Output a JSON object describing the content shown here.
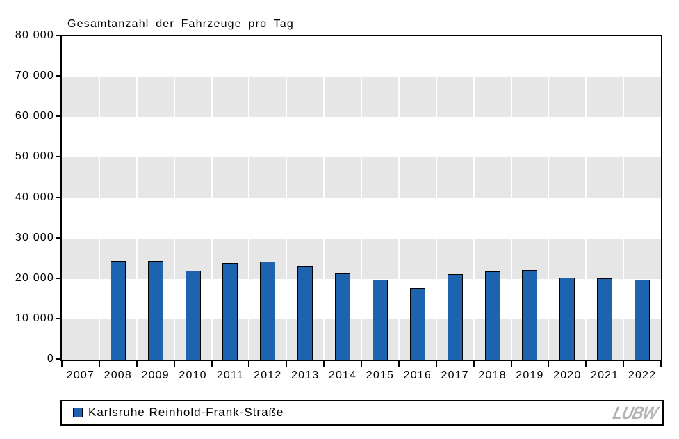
{
  "chart_data": {
    "type": "bar",
    "title": "Gesamtanzahl der Fahrzeuge pro Tag",
    "categories": [
      "2007",
      "2008",
      "2009",
      "2010",
      "2011",
      "2012",
      "2013",
      "2014",
      "2015",
      "2016",
      "2017",
      "2018",
      "2019",
      "2020",
      "2021",
      "2022"
    ],
    "series": [
      {
        "name": "Karlsruhe Reinhold-Frank-Straße",
        "color": "#1e63ad",
        "values": [
          null,
          24400,
          24500,
          22100,
          23900,
          24300,
          23100,
          21400,
          19800,
          17700,
          21200,
          21900,
          22200,
          20300,
          20100,
          19700
        ]
      }
    ],
    "xlabel": "",
    "ylabel": "",
    "ylim": [
      0,
      80000
    ],
    "ytick_interval": 10000,
    "ytick_labels": [
      "80 000",
      "70 000",
      "60 000",
      "50 000",
      "40 000",
      "30 000",
      "20 000",
      "10 000",
      "0"
    ],
    "grid": "alternating horizontal gray bands with white column separators",
    "band_color": "#e6e6e6",
    "legend_position": "bottom"
  },
  "legend": {
    "items": [
      {
        "label": "Karlsruhe Reinhold-Frank-Straße",
        "swatch_color": "#1e63ad"
      }
    ]
  },
  "logo": {
    "text": "LUBW",
    "color": "#b3b3b3"
  },
  "colors": {
    "bar_fill": "#1e63ad",
    "bar_border": "#000000",
    "band": "#e6e6e6",
    "axis": "#000000",
    "background": "#ffffff"
  }
}
